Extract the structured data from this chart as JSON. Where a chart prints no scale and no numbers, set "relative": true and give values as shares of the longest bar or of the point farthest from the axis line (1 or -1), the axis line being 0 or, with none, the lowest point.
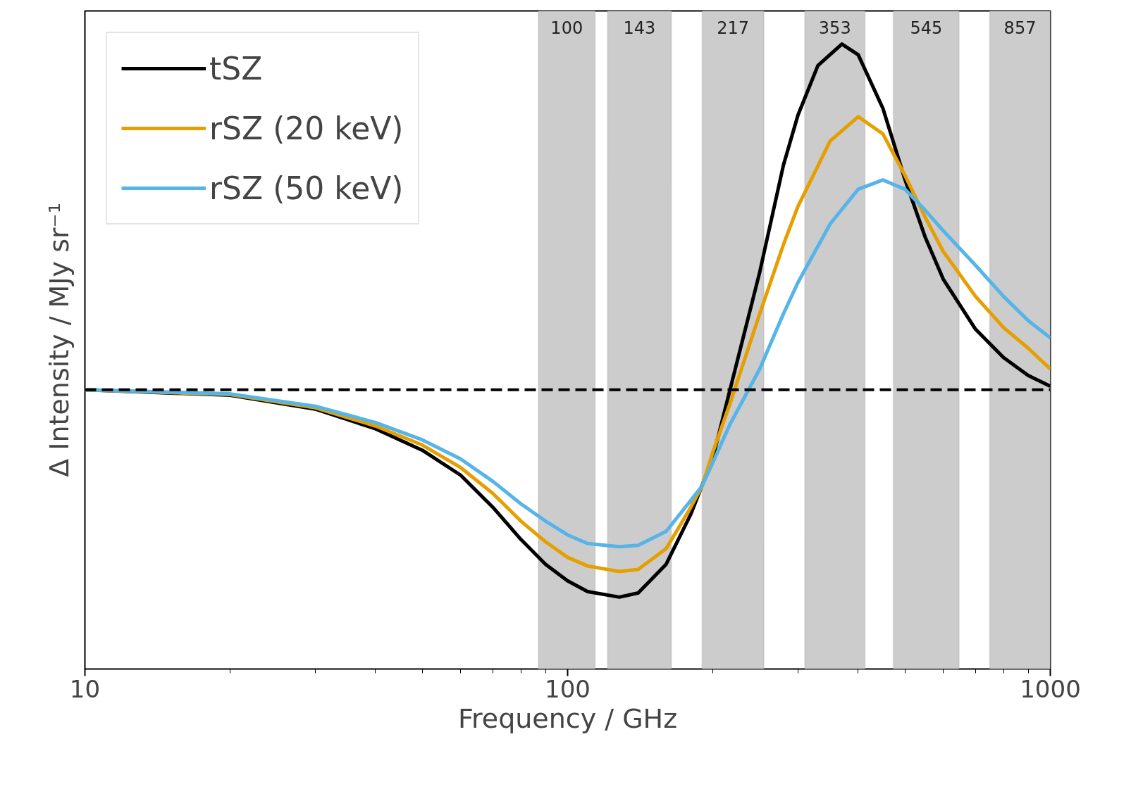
{
  "chart_data": {
    "type": "line",
    "xlabel": "Frequency / GHz",
    "ylabel": "Δ Intensity / MJy sr⁻¹",
    "relative": true,
    "log": "x",
    "xlim": [
      10,
      1000
    ],
    "xticks": [
      10,
      100,
      1000
    ],
    "tick_labels": "x",
    "grid": false,
    "legend": "top left",
    "line_style": "solid",
    "marker": "none",
    "series": [
      {
        "name": "tSZ",
        "color": "#000000",
        "x": [
          10,
          20,
          30,
          40,
          50,
          60,
          70,
          80,
          90,
          100,
          110,
          128,
          140,
          160,
          180,
          200,
          217,
          250,
          280,
          300,
          330,
          370,
          400,
          450,
          500,
          550,
          600,
          700,
          800,
          900,
          1000
        ],
        "values": [
          0,
          -0.016,
          -0.056,
          -0.113,
          -0.175,
          -0.247,
          -0.34,
          -0.433,
          -0.505,
          -0.553,
          -0.584,
          -0.6,
          -0.588,
          -0.505,
          -0.36,
          -0.196,
          0,
          0.34,
          0.65,
          0.794,
          0.938,
          1,
          0.969,
          0.814,
          0.608,
          0.443,
          0.32,
          0.175,
          0.093,
          0.041,
          0.01
        ]
      },
      {
        "name": "rSZ (20 keV)",
        "color": "#e69f00",
        "x": [
          10,
          20,
          30,
          40,
          50,
          60,
          70,
          80,
          90,
          100,
          110,
          128,
          140,
          160,
          180,
          190,
          200,
          217,
          250,
          280,
          300,
          350,
          400,
          450,
          500,
          550,
          600,
          700,
          800,
          900,
          1000
        ],
        "values": [
          0,
          -0.014,
          -0.052,
          -0.105,
          -0.16,
          -0.225,
          -0.3,
          -0.38,
          -0.44,
          -0.485,
          -0.51,
          -0.526,
          -0.52,
          -0.46,
          -0.34,
          -0.278,
          -0.18,
          -0.04,
          0.22,
          0.42,
          0.53,
          0.72,
          0.79,
          0.74,
          0.62,
          0.5,
          0.4,
          0.27,
          0.18,
          0.12,
          0.06
        ]
      },
      {
        "name": "rSZ (50 keV)",
        "color": "#56b4e9",
        "x": [
          10,
          20,
          30,
          40,
          50,
          60,
          70,
          80,
          90,
          100,
          110,
          128,
          140,
          160,
          180,
          190,
          200,
          217,
          250,
          280,
          300,
          350,
          400,
          450,
          500,
          550,
          600,
          700,
          800,
          900,
          1000
        ],
        "values": [
          0,
          -0.012,
          -0.048,
          -0.095,
          -0.145,
          -0.2,
          -0.265,
          -0.33,
          -0.38,
          -0.42,
          -0.445,
          -0.454,
          -0.45,
          -0.41,
          -0.32,
          -0.278,
          -0.21,
          -0.1,
          0.06,
          0.22,
          0.31,
          0.48,
          0.58,
          0.607,
          0.58,
          0.52,
          0.46,
          0.36,
          0.27,
          0.2,
          0.15
        ]
      }
    ],
    "ref_lines": [
      {
        "axis": "y",
        "value": 0,
        "color": "#000000",
        "line_style": "dashed"
      }
    ],
    "bands": [
      {
        "axis": "x",
        "from": 87,
        "to": 114,
        "label": "100",
        "color": "#cccccc"
      },
      {
        "axis": "x",
        "from": 121,
        "to": 164,
        "label": "143",
        "color": "#cccccc"
      },
      {
        "axis": "x",
        "from": 190,
        "to": 255,
        "label": "217",
        "color": "#cccccc"
      },
      {
        "axis": "x",
        "from": 310,
        "to": 413,
        "label": "353",
        "color": "#cccccc"
      },
      {
        "axis": "x",
        "from": 473,
        "to": 647,
        "label": "545",
        "color": "#cccccc"
      },
      {
        "axis": "x",
        "from": 749,
        "to": 1000,
        "label": "857",
        "color": "#cccccc"
      }
    ]
  }
}
